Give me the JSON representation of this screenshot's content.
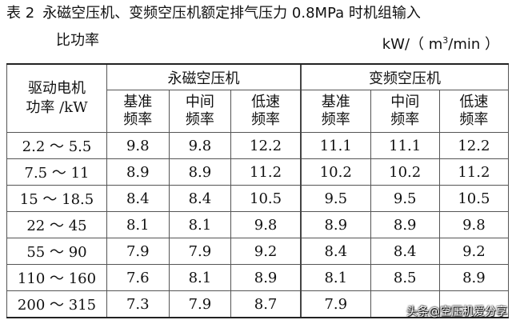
{
  "caption": {
    "label": "表 2",
    "title_line1": "永磁空压机、变频空压机额定排气压力 0.8MPa 时机组输入",
    "title_line2": "比功率",
    "unit_prefix": "kW/（ m",
    "unit_sup": "3",
    "unit_suffix": "/min ）"
  },
  "table": {
    "row_header": "驱动电机功率 /kW",
    "groups": [
      "永磁空压机",
      "变频空压机"
    ],
    "subheaders": [
      "基准频率",
      "中间频率",
      "低速频率",
      "基准频率",
      "中间频率",
      "低速频率"
    ],
    "rows": [
      [
        "2.2 ～ 5.5",
        "9.8",
        "9.8",
        "12.2",
        "11.1",
        "11.1",
        "12.2"
      ],
      [
        "7.5 ～ 11",
        "8.9",
        "8.9",
        "11.2",
        "10.2",
        "10.2",
        "11.2"
      ],
      [
        "15 ～ 18.5",
        "8.4",
        "8.4",
        "10.5",
        "9.5",
        "9.5",
        "10.5"
      ],
      [
        "22 ～ 45",
        "8.1",
        "8.1",
        "9.8",
        "8.9",
        "8.9",
        "9.8"
      ],
      [
        "55 ～ 90",
        "7.9",
        "7.9",
        "9.2",
        "8.4",
        "8.4",
        "9.2"
      ],
      [
        "110 ～ 160",
        "7.6",
        "8.1",
        "8.9",
        "8.1",
        "8.5",
        "8.9"
      ],
      [
        "200 ～ 315",
        "7.3",
        "7.9",
        "8.7",
        "7.9",
        "",
        ""
      ]
    ]
  },
  "watermark": "头条@空压机爱分享"
}
